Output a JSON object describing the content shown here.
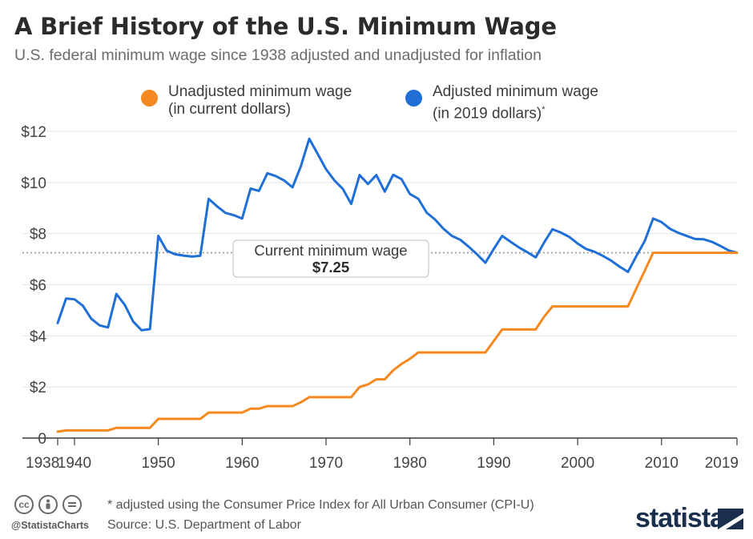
{
  "header": {
    "title": "A Brief History of the U.S. Minimum Wage",
    "subtitle": "U.S. federal minimum wage since 1938 adjusted and unadjusted for inflation"
  },
  "legend": [
    {
      "line1": "Unadjusted minimum wage",
      "line2": "(in current dollars)",
      "color": "#f5891f"
    },
    {
      "line1": "Adjusted minimum wage",
      "line2": "(in 2019 dollars)",
      "color": "#1f6fd6"
    }
  ],
  "annotation": {
    "label": "Current minimum wage",
    "value": "$7.25"
  },
  "footer": {
    "footnote": "* adjusted using the Consumer Price Index for All Urban Consumer (CPI-U)",
    "source": "Source: U.S. Department of Labor",
    "handle": "@StatistaCharts",
    "brand": "statista"
  },
  "chart_data": {
    "type": "line",
    "title": "A Brief History of the U.S. Minimum Wage",
    "subtitle": "U.S. federal minimum wage since 1938 adjusted and unadjusted for inflation",
    "xlabel": "",
    "ylabel": "",
    "xlim": [
      1938,
      2019
    ],
    "ylim": [
      0,
      12
    ],
    "x_ticks": [
      1938,
      1940,
      1950,
      1960,
      1970,
      1980,
      1990,
      2000,
      2010,
      2019
    ],
    "y_ticks": [
      {
        "value": 0,
        "label": "0"
      },
      {
        "value": 2,
        "label": "$2"
      },
      {
        "value": 4,
        "label": "$4"
      },
      {
        "value": 6,
        "label": "$6"
      },
      {
        "value": 8,
        "label": "$8"
      },
      {
        "value": 10,
        "label": "$10"
      },
      {
        "value": 12,
        "label": "$12"
      }
    ],
    "grid": "horizontal",
    "legend_position": "top",
    "reference_line": {
      "value": 7.25,
      "label": "Current minimum wage",
      "value_label": "$7.25"
    },
    "series": [
      {
        "name": "Adjusted minimum wage (in 2019 dollars)",
        "color": "#1f6fd6",
        "points": [
          [
            1938,
            4.5
          ],
          [
            1939,
            5.46
          ],
          [
            1940,
            5.43
          ],
          [
            1941,
            5.18
          ],
          [
            1942,
            4.67
          ],
          [
            1943,
            4.41
          ],
          [
            1944,
            4.33
          ],
          [
            1945,
            5.64
          ],
          [
            1946,
            5.21
          ],
          [
            1947,
            4.56
          ],
          [
            1948,
            4.22
          ],
          [
            1949,
            4.26
          ],
          [
            1950,
            7.91
          ],
          [
            1951,
            7.33
          ],
          [
            1952,
            7.19
          ],
          [
            1953,
            7.14
          ],
          [
            1954,
            7.1
          ],
          [
            1955,
            7.13
          ],
          [
            1956,
            9.36
          ],
          [
            1957,
            9.07
          ],
          [
            1958,
            8.81
          ],
          [
            1959,
            8.72
          ],
          [
            1960,
            8.59
          ],
          [
            1961,
            9.76
          ],
          [
            1962,
            9.67
          ],
          [
            1963,
            10.36
          ],
          [
            1964,
            10.25
          ],
          [
            1965,
            10.08
          ],
          [
            1966,
            9.81
          ],
          [
            1967,
            10.64
          ],
          [
            1968,
            11.71
          ],
          [
            1969,
            11.12
          ],
          [
            1970,
            10.52
          ],
          [
            1971,
            10.08
          ],
          [
            1972,
            9.75
          ],
          [
            1973,
            9.16
          ],
          [
            1974,
            10.29
          ],
          [
            1975,
            9.94
          ],
          [
            1976,
            10.29
          ],
          [
            1977,
            9.64
          ],
          [
            1978,
            10.3
          ],
          [
            1979,
            10.13
          ],
          [
            1980,
            9.55
          ],
          [
            1981,
            9.36
          ],
          [
            1982,
            8.82
          ],
          [
            1983,
            8.55
          ],
          [
            1984,
            8.19
          ],
          [
            1985,
            7.91
          ],
          [
            1986,
            7.76
          ],
          [
            1987,
            7.49
          ],
          [
            1988,
            7.19
          ],
          [
            1989,
            6.86
          ],
          [
            1990,
            7.4
          ],
          [
            1991,
            7.91
          ],
          [
            1992,
            7.68
          ],
          [
            1993,
            7.46
          ],
          [
            1994,
            7.27
          ],
          [
            1995,
            7.07
          ],
          [
            1996,
            7.65
          ],
          [
            1997,
            8.17
          ],
          [
            1998,
            8.04
          ],
          [
            1999,
            7.87
          ],
          [
            2000,
            7.61
          ],
          [
            2001,
            7.4
          ],
          [
            2002,
            7.29
          ],
          [
            2003,
            7.13
          ],
          [
            2004,
            6.94
          ],
          [
            2005,
            6.71
          ],
          [
            2006,
            6.5
          ],
          [
            2007,
            7.12
          ],
          [
            2008,
            7.71
          ],
          [
            2009,
            8.59
          ],
          [
            2010,
            8.45
          ],
          [
            2011,
            8.19
          ],
          [
            2012,
            8.03
          ],
          [
            2013,
            7.91
          ],
          [
            2014,
            7.79
          ],
          [
            2015,
            7.78
          ],
          [
            2016,
            7.68
          ],
          [
            2017,
            7.52
          ],
          [
            2018,
            7.34
          ],
          [
            2019,
            7.25
          ]
        ]
      },
      {
        "name": "Unadjusted minimum wage (in current dollars)",
        "color": "#f5891f",
        "points": [
          [
            1938,
            0.25
          ],
          [
            1939,
            0.3
          ],
          [
            1944,
            0.3
          ],
          [
            1945,
            0.4
          ],
          [
            1949,
            0.4
          ],
          [
            1950,
            0.75
          ],
          [
            1955,
            0.75
          ],
          [
            1956,
            1.0
          ],
          [
            1960,
            1.0
          ],
          [
            1961,
            1.15
          ],
          [
            1962,
            1.15
          ],
          [
            1963,
            1.25
          ],
          [
            1966,
            1.25
          ],
          [
            1967,
            1.4
          ],
          [
            1968,
            1.6
          ],
          [
            1973,
            1.6
          ],
          [
            1974,
            2.0
          ],
          [
            1975,
            2.1
          ],
          [
            1976,
            2.3
          ],
          [
            1977,
            2.3
          ],
          [
            1978,
            2.65
          ],
          [
            1979,
            2.9
          ],
          [
            1980,
            3.1
          ],
          [
            1981,
            3.35
          ],
          [
            1989,
            3.35
          ],
          [
            1990,
            3.8
          ],
          [
            1991,
            4.25
          ],
          [
            1995,
            4.25
          ],
          [
            1996,
            4.75
          ],
          [
            1997,
            5.15
          ],
          [
            2006,
            5.15
          ],
          [
            2007,
            5.85
          ],
          [
            2008,
            6.55
          ],
          [
            2009,
            7.25
          ],
          [
            2019,
            7.25
          ]
        ]
      }
    ]
  }
}
